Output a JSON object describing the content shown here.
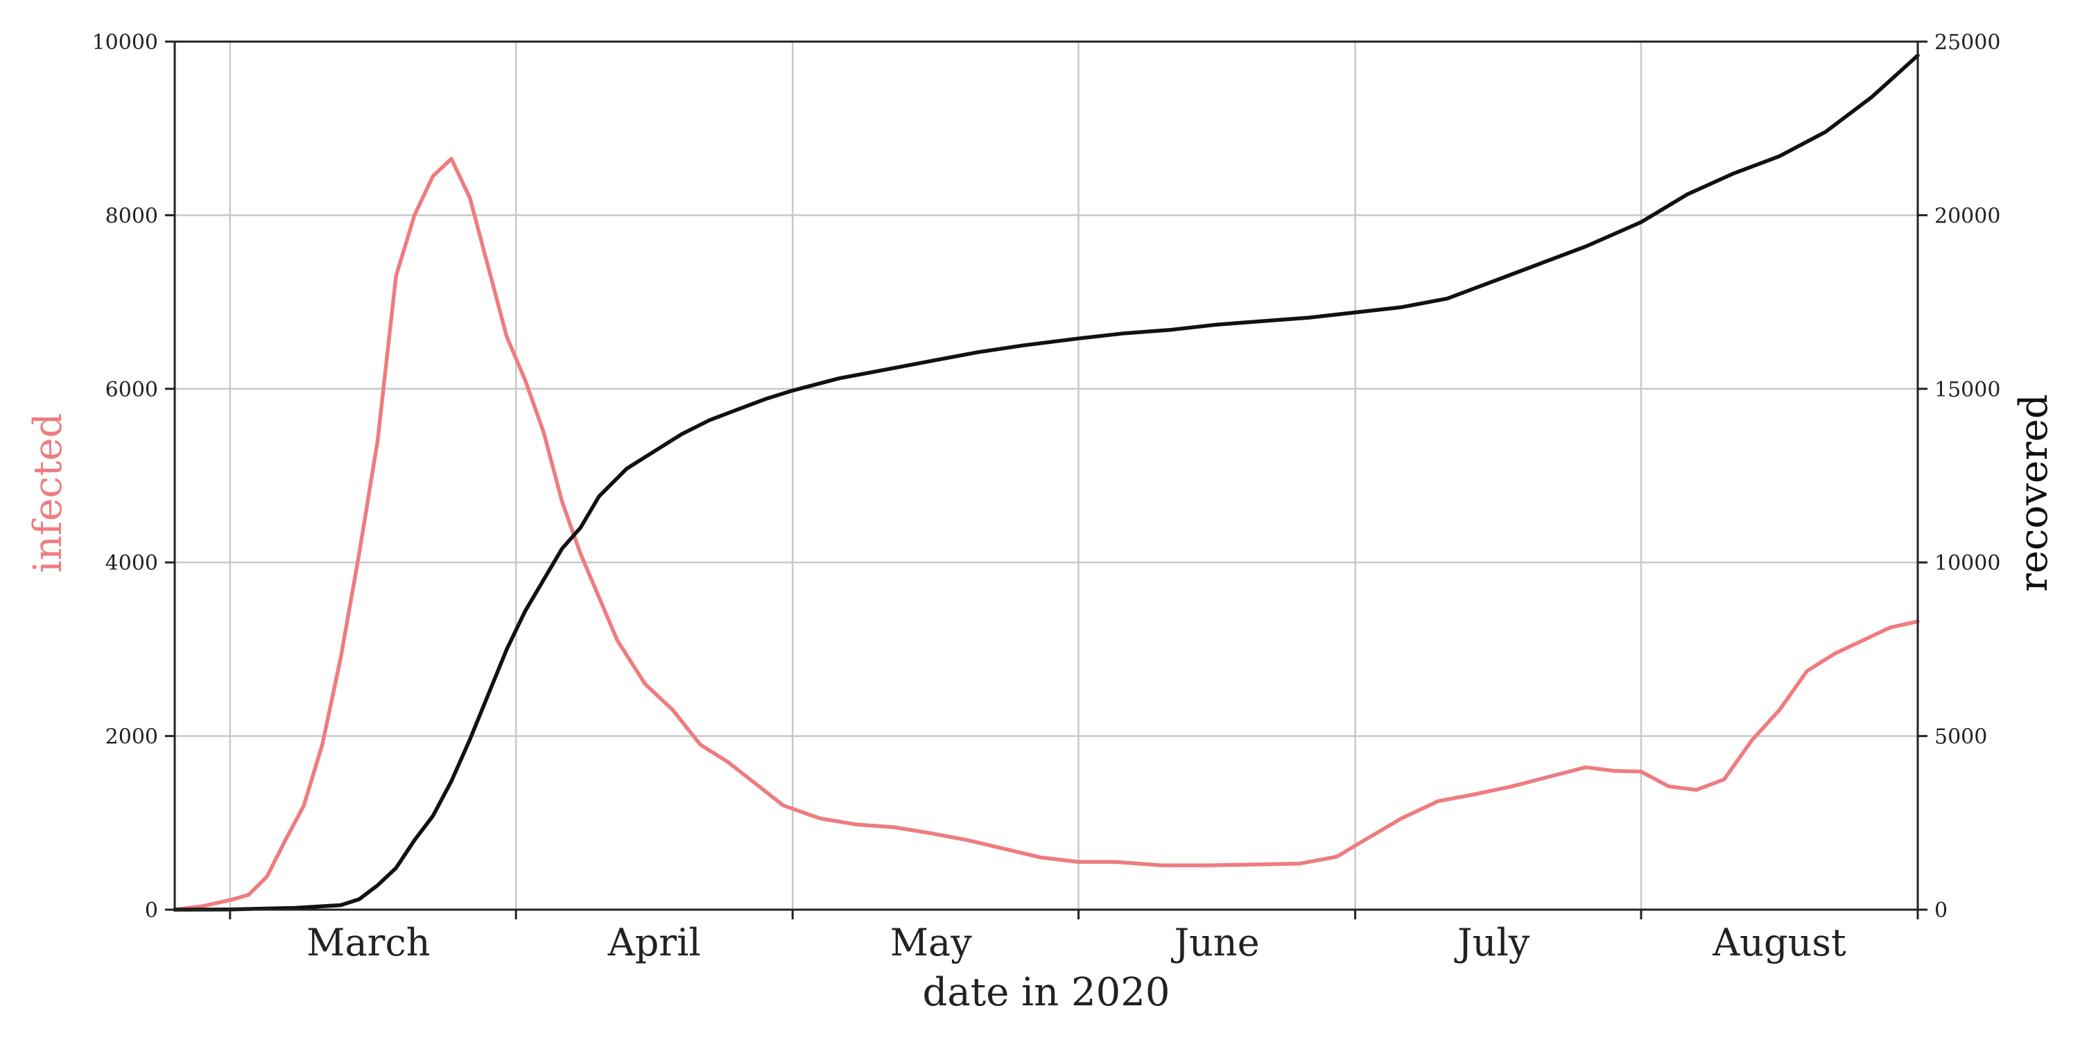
{
  "chart_data": {
    "type": "line",
    "xlabel": "date in 2020",
    "x_range": [
      "2020-02-24",
      "2020-08-31"
    ],
    "x_ticks": [
      "2020-03-01",
      "2020-04-01",
      "2020-05-01",
      "2020-06-01",
      "2020-07-01",
      "2020-08-01",
      "2020-09-01"
    ],
    "x_tick_labels": [
      {
        "label": "March",
        "center": "2020-03-16"
      },
      {
        "label": "April",
        "center": "2020-04-16"
      },
      {
        "label": "May",
        "center": "2020-05-16"
      },
      {
        "label": "June",
        "center": "2020-06-16"
      },
      {
        "label": "July",
        "center": "2020-07-16"
      },
      {
        "label": "August",
        "center": "2020-08-16"
      }
    ],
    "grid": true,
    "left_axis": {
      "ylabel": "infected",
      "ylim": [
        0,
        10000
      ],
      "ticks": [
        0,
        2000,
        4000,
        6000,
        8000,
        10000
      ],
      "color": "#ee7c7f"
    },
    "right_axis": {
      "ylabel": "recovered",
      "ylim": [
        0,
        25000
      ],
      "ticks": [
        0,
        5000,
        10000,
        15000,
        20000,
        25000
      ],
      "color": "#111111"
    },
    "series": [
      {
        "axis": "left",
        "color": "#ee7c7f",
        "points": [
          [
            "2020-02-24",
            0
          ],
          [
            "2020-02-27",
            40
          ],
          [
            "2020-03-01",
            110
          ],
          [
            "2020-03-03",
            170
          ],
          [
            "2020-03-05",
            380
          ],
          [
            "2020-03-07",
            800
          ],
          [
            "2020-03-09",
            1200
          ],
          [
            "2020-03-11",
            1900
          ],
          [
            "2020-03-13",
            2900
          ],
          [
            "2020-03-15",
            4100
          ],
          [
            "2020-03-17",
            5400
          ],
          [
            "2020-03-19",
            7300
          ],
          [
            "2020-03-21",
            8000
          ],
          [
            "2020-03-23",
            8450
          ],
          [
            "2020-03-25",
            8650
          ],
          [
            "2020-03-27",
            8200
          ],
          [
            "2020-03-29",
            7400
          ],
          [
            "2020-03-31",
            6600
          ],
          [
            "2020-04-02",
            6100
          ],
          [
            "2020-04-04",
            5500
          ],
          [
            "2020-04-06",
            4700
          ],
          [
            "2020-04-08",
            4100
          ],
          [
            "2020-04-10",
            3600
          ],
          [
            "2020-04-12",
            3100
          ],
          [
            "2020-04-15",
            2600
          ],
          [
            "2020-04-18",
            2300
          ],
          [
            "2020-04-21",
            1900
          ],
          [
            "2020-04-24",
            1700
          ],
          [
            "2020-04-27",
            1450
          ],
          [
            "2020-04-30",
            1200
          ],
          [
            "2020-05-04",
            1050
          ],
          [
            "2020-05-08",
            980
          ],
          [
            "2020-05-12",
            950
          ],
          [
            "2020-05-16",
            880
          ],
          [
            "2020-05-20",
            800
          ],
          [
            "2020-05-24",
            700
          ],
          [
            "2020-05-28",
            600
          ],
          [
            "2020-06-01",
            550
          ],
          [
            "2020-06-05",
            550
          ],
          [
            "2020-06-10",
            510
          ],
          [
            "2020-06-15",
            510
          ],
          [
            "2020-06-20",
            520
          ],
          [
            "2020-06-25",
            530
          ],
          [
            "2020-06-29",
            610
          ],
          [
            "2020-07-02",
            800
          ],
          [
            "2020-07-06",
            1050
          ],
          [
            "2020-07-10",
            1250
          ],
          [
            "2020-07-14",
            1330
          ],
          [
            "2020-07-18",
            1420
          ],
          [
            "2020-07-22",
            1530
          ],
          [
            "2020-07-26",
            1640
          ],
          [
            "2020-07-29",
            1600
          ],
          [
            "2020-08-01",
            1590
          ],
          [
            "2020-08-04",
            1420
          ],
          [
            "2020-08-07",
            1380
          ],
          [
            "2020-08-10",
            1500
          ],
          [
            "2020-08-13",
            1950
          ],
          [
            "2020-08-16",
            2300
          ],
          [
            "2020-08-19",
            2750
          ],
          [
            "2020-08-22",
            2950
          ],
          [
            "2020-08-25",
            3100
          ],
          [
            "2020-08-28",
            3250
          ],
          [
            "2020-08-31",
            3320
          ]
        ]
      },
      {
        "axis": "right",
        "color": "#111111",
        "points": [
          [
            "2020-02-24",
            0
          ],
          [
            "2020-03-01",
            5
          ],
          [
            "2020-03-08",
            50
          ],
          [
            "2020-03-13",
            130
          ],
          [
            "2020-03-15",
            300
          ],
          [
            "2020-03-17",
            700
          ],
          [
            "2020-03-19",
            1200
          ],
          [
            "2020-03-21",
            2000
          ],
          [
            "2020-03-23",
            2700
          ],
          [
            "2020-03-25",
            3700
          ],
          [
            "2020-03-27",
            4900
          ],
          [
            "2020-03-29",
            6200
          ],
          [
            "2020-03-31",
            7500
          ],
          [
            "2020-04-02",
            8600
          ],
          [
            "2020-04-04",
            9500
          ],
          [
            "2020-04-06",
            10400
          ],
          [
            "2020-04-08",
            11000
          ],
          [
            "2020-04-10",
            11900
          ],
          [
            "2020-04-13",
            12700
          ],
          [
            "2020-04-16",
            13200
          ],
          [
            "2020-04-19",
            13700
          ],
          [
            "2020-04-22",
            14100
          ],
          [
            "2020-04-25",
            14400
          ],
          [
            "2020-04-28",
            14700
          ],
          [
            "2020-05-01",
            14950
          ],
          [
            "2020-05-06",
            15300
          ],
          [
            "2020-05-11",
            15550
          ],
          [
            "2020-05-16",
            15800
          ],
          [
            "2020-05-21",
            16050
          ],
          [
            "2020-05-26",
            16250
          ],
          [
            "2020-06-01",
            16450
          ],
          [
            "2020-06-06",
            16600
          ],
          [
            "2020-06-11",
            16700
          ],
          [
            "2020-06-16",
            16850
          ],
          [
            "2020-06-21",
            16950
          ],
          [
            "2020-06-26",
            17050
          ],
          [
            "2020-07-01",
            17200
          ],
          [
            "2020-07-06",
            17350
          ],
          [
            "2020-07-11",
            17600
          ],
          [
            "2020-07-16",
            18100
          ],
          [
            "2020-07-21",
            18600
          ],
          [
            "2020-07-26",
            19100
          ],
          [
            "2020-08-01",
            19800
          ],
          [
            "2020-08-06",
            20600
          ],
          [
            "2020-08-11",
            21200
          ],
          [
            "2020-08-16",
            21700
          ],
          [
            "2020-08-21",
            22400
          ],
          [
            "2020-08-26",
            23400
          ],
          [
            "2020-08-31",
            24600
          ]
        ]
      }
    ]
  }
}
